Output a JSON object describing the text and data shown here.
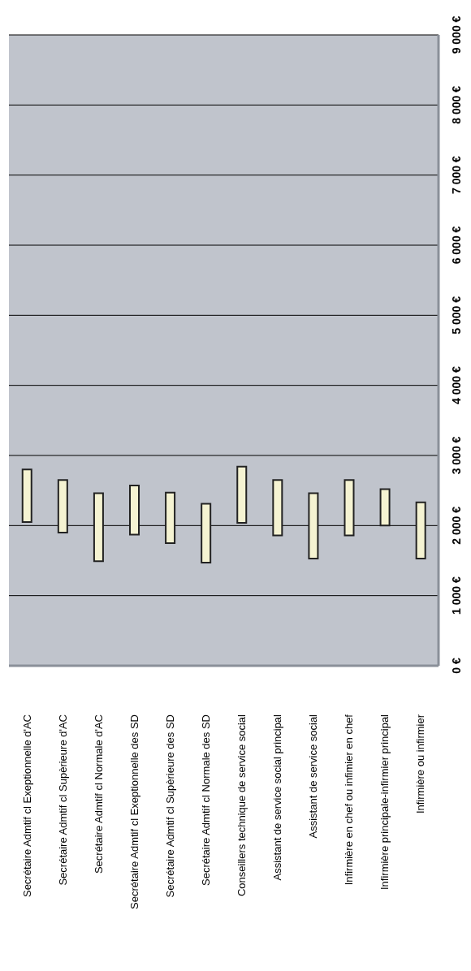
{
  "chart_data": {
    "type": "bar",
    "categories": [
      "Secrétaire Admtif cl Exeptionnelle d'AC",
      "Secrétaire Admtif cl Supèrieure d'AC",
      "Secrétaire Admtif cl Normale d'AC",
      "Secrétaire Admtif cl Exeptionnelle des SD",
      "Secrétaire Admtif cl Supèrieure des SD",
      "Secrétaire Admtif cl Normale des SD",
      "Conseillers technique de service social",
      "Assistant de service social principal",
      "Assistant de service social",
      "Infirmière en chef ou infimier en chef",
      "Infirmière principale-infirmier principal",
      "Infirmière ou infirmier"
    ],
    "base": [
      2050,
      1900,
      1490,
      1870,
      1750,
      1470,
      2040,
      1860,
      1530,
      1860,
      2000,
      1530
    ],
    "values": [
      750,
      750,
      970,
      700,
      720,
      840,
      800,
      790,
      930,
      790,
      520,
      800
    ],
    "color": "#f5f3d2",
    "ylim": [
      0,
      9000
    ],
    "yticks": [
      {
        "value": 0,
        "label": "0 €"
      },
      {
        "value": 1000,
        "label": "1 000 €"
      },
      {
        "value": 2000,
        "label": "2 000 €"
      },
      {
        "value": 3000,
        "label": "3 000 €"
      },
      {
        "value": 4000,
        "label": "4 000 €"
      },
      {
        "value": 5000,
        "label": "5 000 €"
      },
      {
        "value": 6000,
        "label": "6 000 €"
      },
      {
        "value": 7000,
        "label": "7 000 €"
      },
      {
        "value": 8000,
        "label": "8 000 €"
      },
      {
        "value": 9000,
        "label": "9 000 €"
      }
    ],
    "grid": "y"
  }
}
